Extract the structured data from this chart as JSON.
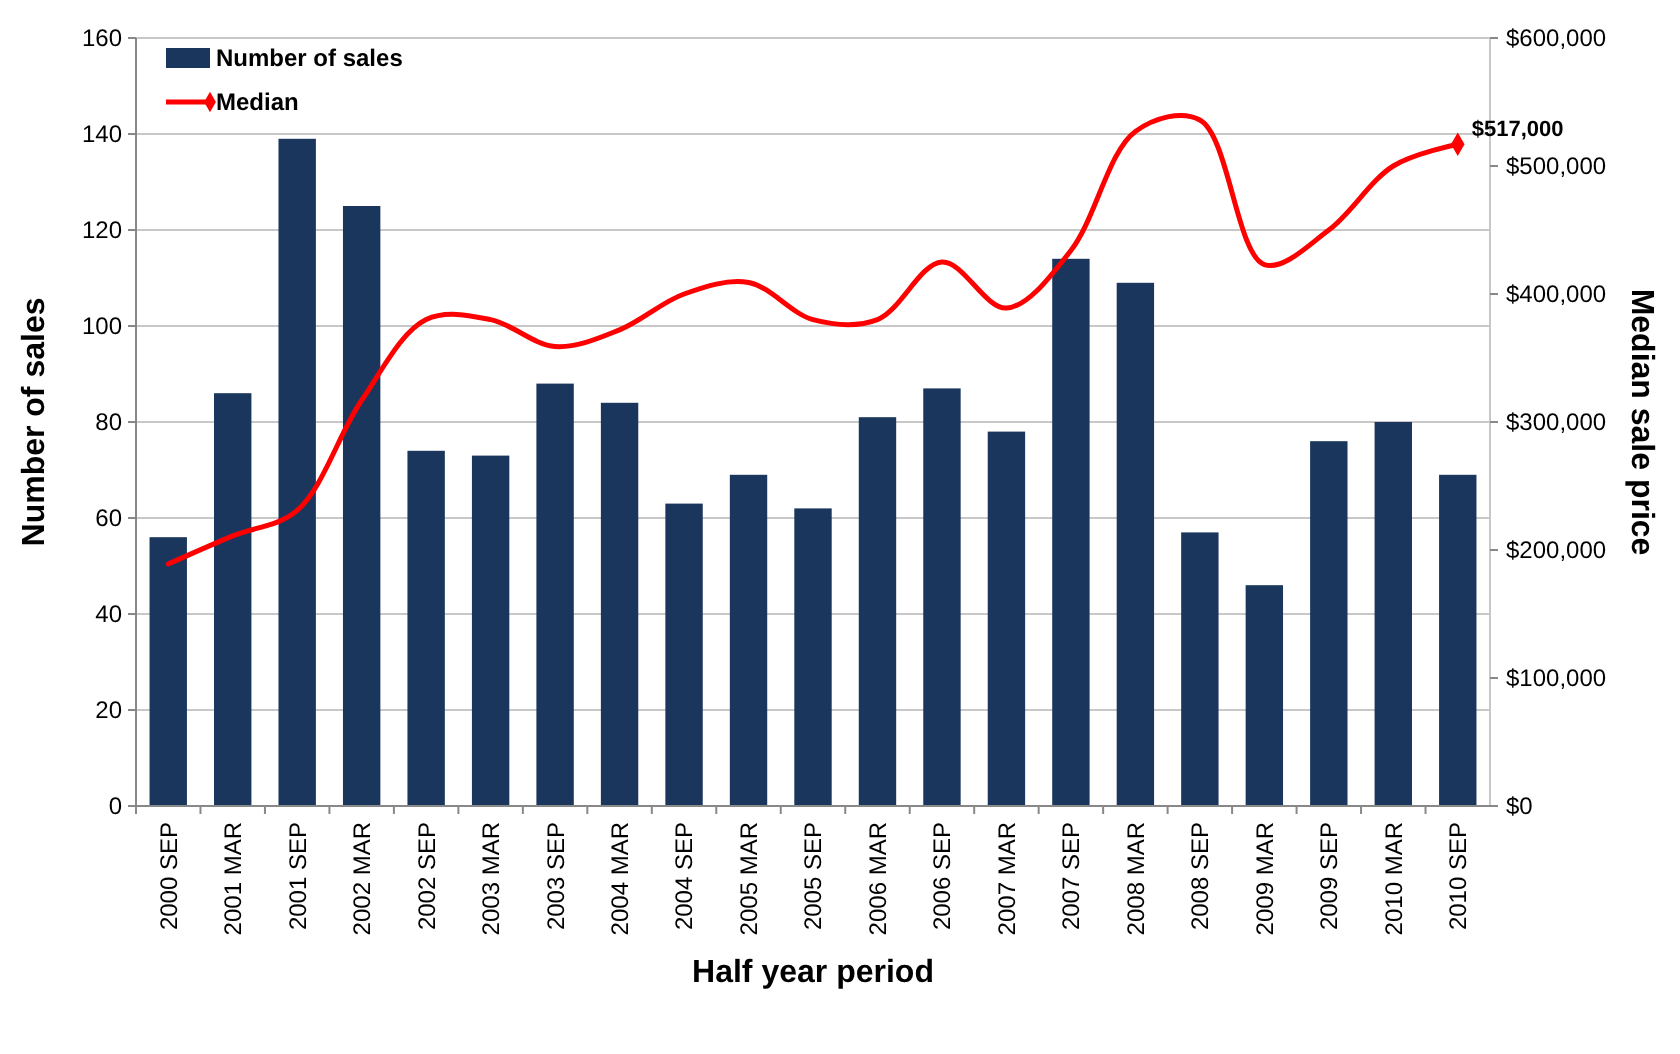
{
  "chart_data": {
    "type": "bar",
    "xlabel": "Half year period",
    "ylabel": "Number of sales",
    "y2label": "Median sale price",
    "categories": [
      "2000 SEP",
      "2001 MAR",
      "2001 SEP",
      "2002 MAR",
      "2002 SEP",
      "2003 MAR",
      "2003 SEP",
      "2004 MAR",
      "2004 SEP",
      "2005 MAR",
      "2005 SEP",
      "2006 MAR",
      "2006 SEP",
      "2007 MAR",
      "2007 SEP",
      "2008 MAR",
      "2008 SEP",
      "2009 MAR",
      "2009 SEP",
      "2010 MAR",
      "2010 SEP"
    ],
    "series": [
      {
        "name": "Number of sales",
        "color": "#1b365d",
        "values": [
          56,
          86,
          139,
          125,
          74,
          73,
          88,
          84,
          63,
          69,
          62,
          81,
          87,
          78,
          114,
          109,
          57,
          46,
          76,
          80,
          69
        ]
      },
      {
        "name": "Median",
        "type": "line",
        "axis": "y2",
        "color": "#ff0000",
        "values": [
          189000,
          211000,
          231000,
          317000,
          380000,
          380000,
          359000,
          372000,
          400000,
          409000,
          380000,
          380000,
          425000,
          389000,
          434000,
          527000,
          536000,
          423000,
          450000,
          500000,
          517000
        ],
        "value_labels": [
          null,
          null,
          null,
          null,
          null,
          null,
          null,
          null,
          null,
          null,
          null,
          null,
          null,
          null,
          null,
          null,
          null,
          null,
          null,
          null,
          "$517,000"
        ]
      }
    ],
    "ylim": [
      0,
      160
    ],
    "yticks": [
      0,
      20,
      40,
      60,
      80,
      100,
      120,
      140,
      160
    ],
    "y2lim": [
      0,
      600000
    ],
    "y2ticks": [
      {
        "value": 0,
        "label": "$0"
      },
      {
        "value": 100000,
        "label": "$100,000"
      },
      {
        "value": 200000,
        "label": "$200,000"
      },
      {
        "value": 300000,
        "label": "$300,000"
      },
      {
        "value": 400000,
        "label": "$400,000"
      },
      {
        "value": 500000,
        "label": "$500,000"
      },
      {
        "value": 600000,
        "label": "$600,000"
      }
    ],
    "grid": "y",
    "legend": "top left",
    "marker": "none",
    "line_style": "solid"
  }
}
